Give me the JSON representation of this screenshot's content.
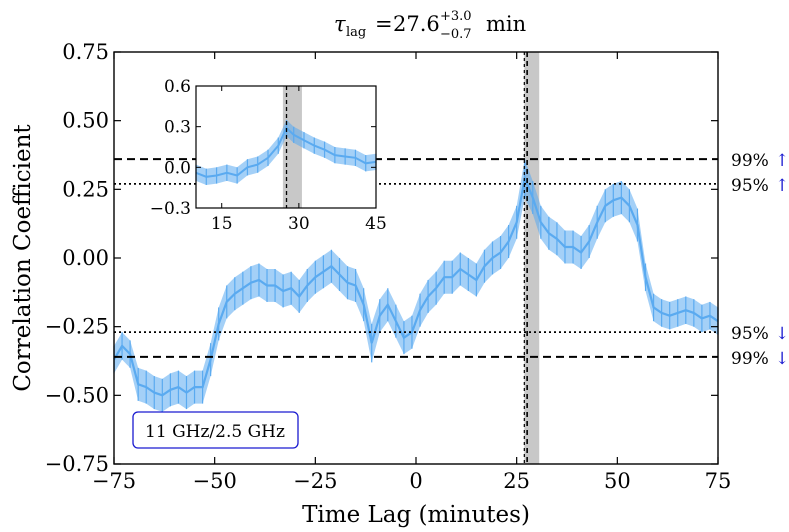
{
  "chart_data": {
    "type": "line",
    "title": {
      "symbol": "τ",
      "subscript": "lag",
      "equals": "=",
      "value": "27.6",
      "plus": "+3.0",
      "minus": "−0.7",
      "unit": "min"
    },
    "xlabel": "Time Lag (minutes)",
    "ylabel": "Correlation Coefficient",
    "xlim": [
      -75,
      75
    ],
    "ylim": [
      -0.75,
      0.75
    ],
    "xticks": [
      -75,
      -50,
      -25,
      0,
      25,
      50,
      75
    ],
    "xtick_labels": [
      "−75",
      "−50",
      "−25",
      "0",
      "25",
      "50",
      "75"
    ],
    "yticks": [
      -0.75,
      -0.5,
      -0.25,
      0.0,
      0.25,
      0.5,
      0.75
    ],
    "ytick_labels": [
      "−0.75",
      "−0.50",
      "−0.25",
      "0.00",
      "0.25",
      "0.50",
      "0.75"
    ],
    "series": [
      {
        "name": "11 GHz/2.5 GHz",
        "color": "#5aaaf0",
        "x": [
          -75,
          -73,
          -71,
          -69,
          -67,
          -65,
          -63,
          -61,
          -59,
          -57,
          -55,
          -53,
          -51,
          -49,
          -47,
          -45,
          -43,
          -41,
          -39,
          -37,
          -35,
          -33,
          -31,
          -29,
          -27,
          -25,
          -23,
          -21,
          -19,
          -17,
          -15,
          -13,
          -11,
          -9,
          -7,
          -5,
          -3,
          -1,
          1,
          3,
          5,
          7,
          9,
          11,
          13,
          15,
          17,
          19,
          21,
          23,
          25,
          27,
          29,
          31,
          33,
          35,
          37,
          39,
          41,
          43,
          45,
          47,
          49,
          51,
          53,
          55,
          57,
          59,
          61,
          63,
          65,
          67,
          69,
          71,
          73,
          75
        ],
        "y": [
          -0.37,
          -0.32,
          -0.35,
          -0.46,
          -0.47,
          -0.49,
          -0.5,
          -0.48,
          -0.47,
          -0.49,
          -0.47,
          -0.47,
          -0.37,
          -0.24,
          -0.16,
          -0.13,
          -0.11,
          -0.09,
          -0.08,
          -0.1,
          -0.1,
          -0.12,
          -0.11,
          -0.14,
          -0.1,
          -0.07,
          -0.05,
          -0.03,
          -0.06,
          -0.09,
          -0.1,
          -0.17,
          -0.31,
          -0.21,
          -0.17,
          -0.23,
          -0.29,
          -0.27,
          -0.19,
          -0.14,
          -0.11,
          -0.07,
          -0.07,
          -0.04,
          -0.06,
          -0.08,
          -0.03,
          0.0,
          0.02,
          0.06,
          0.13,
          0.29,
          0.22,
          0.13,
          0.09,
          0.07,
          0.04,
          0.04,
          0.02,
          0.06,
          0.13,
          0.19,
          0.21,
          0.22,
          0.19,
          0.12,
          -0.07,
          -0.18,
          -0.2,
          -0.21,
          -0.2,
          -0.19,
          -0.2,
          -0.22,
          -0.21,
          -0.23
        ],
        "err": [
          0.05,
          0.05,
          0.05,
          0.06,
          0.06,
          0.06,
          0.06,
          0.06,
          0.06,
          0.06,
          0.06,
          0.06,
          0.06,
          0.06,
          0.06,
          0.06,
          0.06,
          0.06,
          0.06,
          0.06,
          0.06,
          0.06,
          0.06,
          0.06,
          0.06,
          0.06,
          0.06,
          0.06,
          0.06,
          0.06,
          0.06,
          0.06,
          0.07,
          0.06,
          0.06,
          0.06,
          0.06,
          0.06,
          0.06,
          0.06,
          0.06,
          0.06,
          0.06,
          0.06,
          0.06,
          0.06,
          0.06,
          0.06,
          0.06,
          0.06,
          0.06,
          0.07,
          0.06,
          0.06,
          0.06,
          0.06,
          0.06,
          0.06,
          0.06,
          0.06,
          0.06,
          0.06,
          0.06,
          0.06,
          0.06,
          0.06,
          0.05,
          0.05,
          0.05,
          0.05,
          0.05,
          0.05,
          0.05,
          0.05,
          0.05,
          0.05
        ]
      }
    ],
    "significance_lines": [
      {
        "label": "99%",
        "arrow": "↑",
        "y": 0.36,
        "style": "dashed"
      },
      {
        "label": "95%",
        "arrow": "↑",
        "y": 0.27,
        "style": "dotted"
      },
      {
        "label": "95%",
        "arrow": "↓",
        "y": -0.27,
        "style": "dotted"
      },
      {
        "label": "99%",
        "arrow": "↓",
        "y": -0.36,
        "style": "dashed"
      }
    ],
    "lag": {
      "value": 27.6,
      "low": 26.9,
      "high": 30.6
    },
    "legend_box": "11 GHz/2.5 GHz",
    "inset": {
      "xlim": [
        10,
        45
      ],
      "ylim": [
        -0.3,
        0.6
      ],
      "xticks": [
        15,
        30,
        45
      ],
      "xtick_labels": [
        "15",
        "30",
        "45"
      ],
      "yticks": [
        -0.3,
        0.0,
        0.3,
        0.6
      ],
      "ytick_labels": [
        "−0.3",
        "0.0",
        "0.3",
        "0.6"
      ],
      "x": [
        10,
        12,
        14,
        16,
        18,
        20,
        22,
        24,
        26,
        27.6,
        29,
        31,
        33,
        35,
        37,
        39,
        41,
        43,
        45
      ],
      "y": [
        -0.04,
        -0.07,
        -0.06,
        -0.04,
        -0.06,
        0.0,
        0.02,
        0.07,
        0.16,
        0.29,
        0.24,
        0.2,
        0.16,
        0.13,
        0.09,
        0.08,
        0.07,
        0.03,
        0.04
      ]
    },
    "colors": {
      "series": "#5aaaf0",
      "arrow": "#1a1ad0",
      "shade": "#c8c8c8",
      "legend_border": "#1a1ad0"
    }
  }
}
